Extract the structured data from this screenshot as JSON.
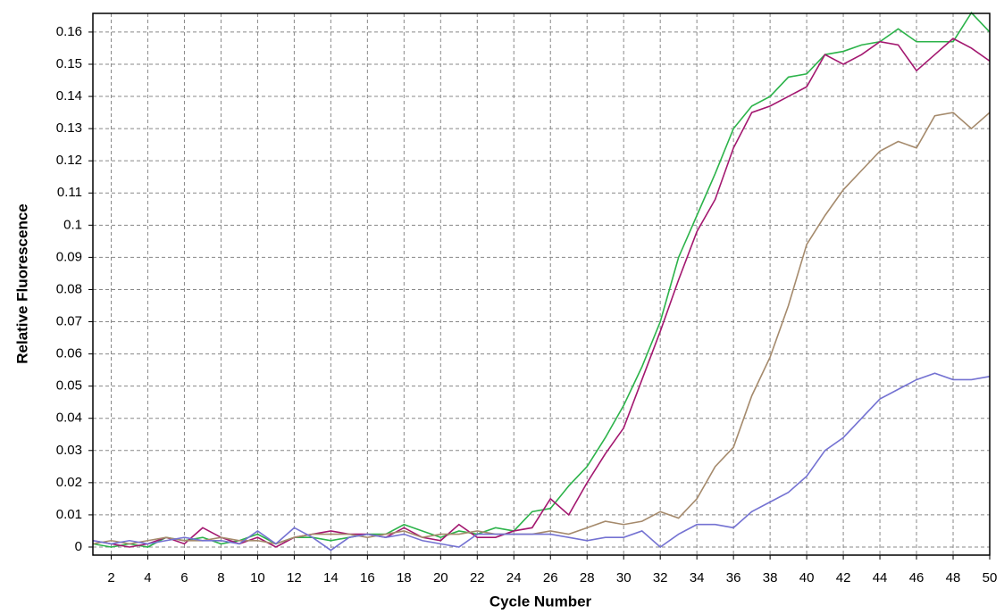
{
  "chart_data": {
    "type": "line",
    "xlabel": "Cycle Number",
    "ylabel": "Relative Fluorescence",
    "x": [
      1,
      2,
      3,
      4,
      5,
      6,
      7,
      8,
      9,
      10,
      11,
      12,
      13,
      14,
      15,
      16,
      17,
      18,
      19,
      20,
      21,
      22,
      23,
      24,
      25,
      26,
      27,
      28,
      29,
      30,
      31,
      32,
      33,
      34,
      35,
      36,
      37,
      38,
      39,
      40,
      41,
      42,
      43,
      44,
      45,
      46,
      47,
      48,
      49,
      50
    ],
    "series": [
      {
        "color": "#2cb34a",
        "values": [
          0.001,
          0.0,
          0.001,
          0.0,
          0.003,
          0.002,
          0.003,
          0.001,
          0.002,
          0.004,
          0.001,
          0.003,
          0.003,
          0.002,
          0.003,
          0.004,
          0.004,
          0.007,
          0.005,
          0.003,
          0.005,
          0.004,
          0.006,
          0.005,
          0.011,
          0.012,
          0.019,
          0.025,
          0.034,
          0.044,
          0.056,
          0.07,
          0.09,
          0.103,
          0.116,
          0.13,
          0.137,
          0.14,
          0.146,
          0.147,
          0.153,
          0.154,
          0.156,
          0.157,
          0.161,
          0.157,
          0.157,
          0.157,
          0.166,
          0.16
        ]
      },
      {
        "color": "#a3176f",
        "values": [
          0.002,
          0.001,
          0.0,
          0.001,
          0.003,
          0.001,
          0.006,
          0.003,
          0.001,
          0.003,
          0.0,
          0.003,
          0.004,
          0.005,
          0.004,
          0.004,
          0.003,
          0.006,
          0.003,
          0.002,
          0.007,
          0.003,
          0.003,
          0.005,
          0.006,
          0.015,
          0.01,
          0.02,
          0.029,
          0.037,
          0.052,
          0.067,
          0.083,
          0.098,
          0.108,
          0.124,
          0.135,
          0.137,
          0.14,
          0.143,
          0.153,
          0.15,
          0.153,
          0.157,
          0.156,
          0.148,
          0.153,
          0.158,
          0.155,
          0.151
        ]
      },
      {
        "color": "#a58a6c",
        "values": [
          0.001,
          0.002,
          0.001,
          0.002,
          0.003,
          0.002,
          0.002,
          0.003,
          0.002,
          0.002,
          0.001,
          0.003,
          0.004,
          0.004,
          0.004,
          0.003,
          0.004,
          0.005,
          0.003,
          0.004,
          0.004,
          0.005,
          0.004,
          0.004,
          0.004,
          0.005,
          0.004,
          0.006,
          0.008,
          0.007,
          0.008,
          0.011,
          0.009,
          0.015,
          0.025,
          0.031,
          0.047,
          0.059,
          0.075,
          0.094,
          0.103,
          0.111,
          0.117,
          0.123,
          0.126,
          0.124,
          0.134,
          0.135,
          0.13,
          0.135
        ]
      },
      {
        "color": "#7472d2",
        "values": [
          0.002,
          0.001,
          0.002,
          0.001,
          0.002,
          0.003,
          0.002,
          0.002,
          0.001,
          0.005,
          0.001,
          0.006,
          0.003,
          -0.001,
          0.003,
          0.004,
          0.003,
          0.004,
          0.002,
          0.001,
          0.0,
          0.004,
          0.004,
          0.004,
          0.004,
          0.004,
          0.003,
          0.002,
          0.003,
          0.003,
          0.005,
          0.0,
          0.004,
          0.007,
          0.007,
          0.006,
          0.011,
          0.014,
          0.017,
          0.022,
          0.03,
          0.034,
          0.04,
          0.046,
          0.049,
          0.052,
          0.054,
          0.052,
          0.052,
          0.053
        ]
      }
    ],
    "xlim": [
      1,
      50
    ],
    "ylim": [
      -0.0025,
      0.1658
    ],
    "xticks": [
      2,
      4,
      6,
      8,
      10,
      12,
      14,
      16,
      18,
      20,
      22,
      24,
      26,
      28,
      30,
      32,
      34,
      36,
      38,
      40,
      42,
      44,
      46,
      48,
      50
    ],
    "yticks": [
      0,
      0.01,
      0.02,
      0.03,
      0.04,
      0.05,
      0.06,
      0.07,
      0.08,
      0.09,
      0.1,
      0.11,
      0.12,
      0.13,
      0.14,
      0.15,
      0.16
    ],
    "grid": true
  }
}
